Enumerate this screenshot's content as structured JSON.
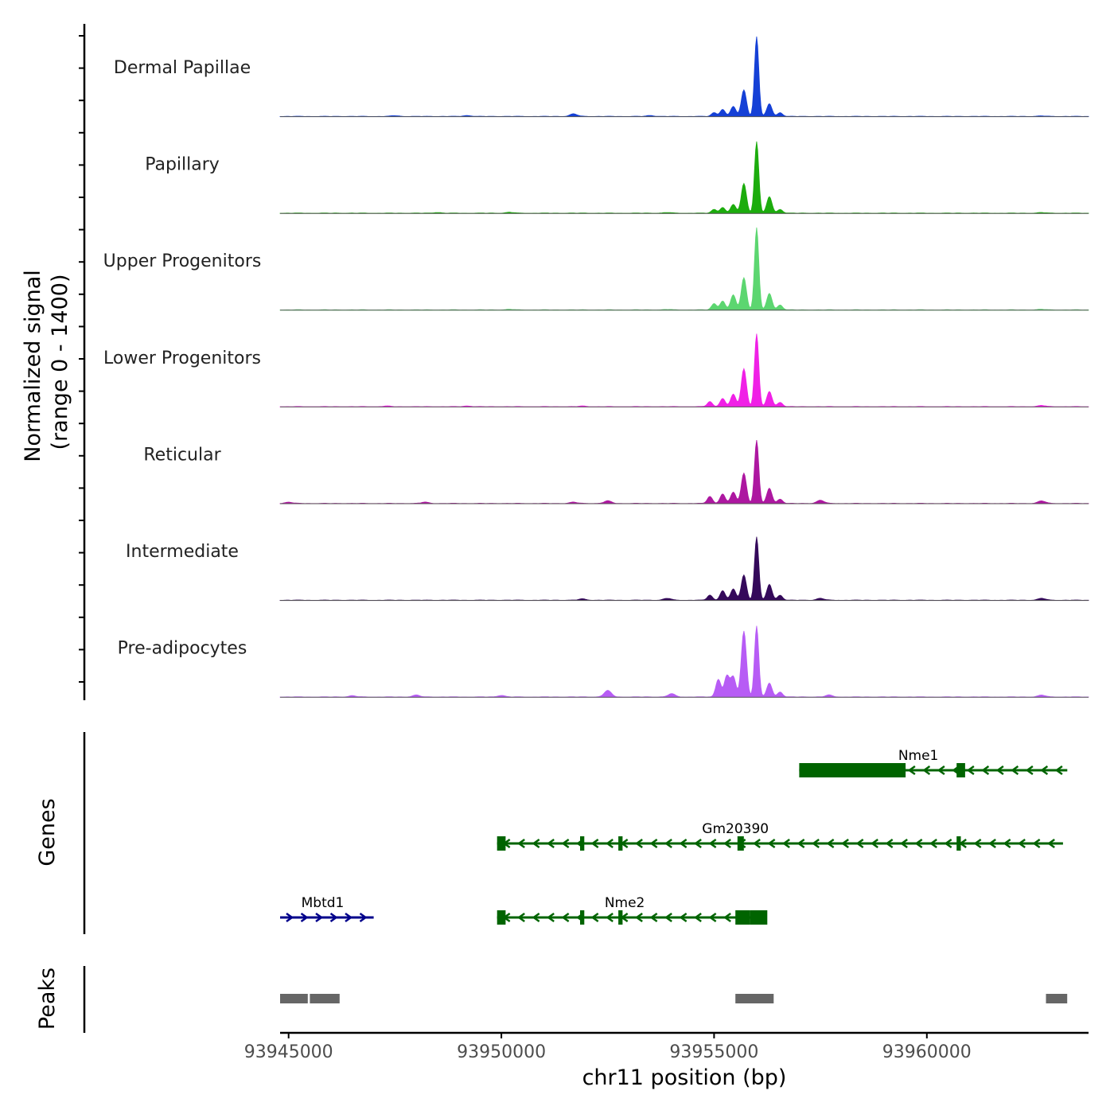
{
  "chart_data": {
    "type": "area",
    "title": "",
    "chromosome": "chr11",
    "xlabel": "chr11 position (bp)",
    "ylabel_line1": "Normalized signal",
    "ylabel_line2": "(range 0 - 1400)",
    "ylim": [
      0,
      1400
    ],
    "xlim": [
      93944800,
      93963800
    ],
    "x_ticks": [
      93945000,
      93950000,
      93955000,
      93960000
    ],
    "x_tick_labels": [
      "93945000",
      "93950000",
      "93955000",
      "93960000"
    ],
    "coverage_peaks": {
      "positions": [
        93954900,
        93955200,
        93955400,
        93955700,
        93956000,
        93956300,
        93956600
      ],
      "note": "signal concentrated around 93955000-93956700"
    },
    "tracks": [
      {
        "name": "Dermal Papillae",
        "color": "#1540d6",
        "peaks": [
          [
            93955000,
            60
          ],
          [
            93955200,
            110
          ],
          [
            93955450,
            160
          ],
          [
            93955700,
            420
          ],
          [
            93956000,
            1260
          ],
          [
            93956300,
            200
          ],
          [
            93956550,
            60
          ]
        ],
        "minor": [
          [
            93951700,
            40
          ],
          [
            93949200,
            15
          ],
          [
            93947500,
            12
          ],
          [
            93953500,
            14
          ],
          [
            93962700,
            8
          ]
        ]
      },
      {
        "name": "Papillary",
        "color": "#1cac0d",
        "peaks": [
          [
            93955000,
            60
          ],
          [
            93955200,
            90
          ],
          [
            93955450,
            140
          ],
          [
            93955700,
            470
          ],
          [
            93956000,
            1130
          ],
          [
            93956300,
            260
          ],
          [
            93956550,
            60
          ]
        ],
        "minor": [
          [
            93948500,
            12
          ],
          [
            93950200,
            14
          ],
          [
            93953900,
            10
          ],
          [
            93962700,
            10
          ]
        ]
      },
      {
        "name": "Upper Progenitors",
        "color": "#5cd670",
        "peaks": [
          [
            93955000,
            100
          ],
          [
            93955200,
            140
          ],
          [
            93955450,
            240
          ],
          [
            93955700,
            510
          ],
          [
            93956000,
            1300
          ],
          [
            93956300,
            260
          ],
          [
            93956550,
            80
          ]
        ],
        "minor": [
          [
            93950200,
            10
          ],
          [
            93953900,
            8
          ],
          [
            93962700,
            10
          ]
        ]
      },
      {
        "name": "Lower Progenitors",
        "color": "#f020e6",
        "peaks": [
          [
            93954900,
            80
          ],
          [
            93955200,
            130
          ],
          [
            93955450,
            200
          ],
          [
            93955700,
            600
          ],
          [
            93956000,
            1150
          ],
          [
            93956300,
            240
          ],
          [
            93956550,
            70
          ]
        ],
        "minor": [
          [
            93947300,
            10
          ],
          [
            93949200,
            12
          ],
          [
            93951900,
            10
          ],
          [
            93962700,
            20
          ]
        ]
      },
      {
        "name": "Reticular",
        "color": "#ad17a0",
        "peaks": [
          [
            93954900,
            110
          ],
          [
            93955200,
            150
          ],
          [
            93955450,
            180
          ],
          [
            93955700,
            480
          ],
          [
            93956000,
            1000
          ],
          [
            93956300,
            240
          ],
          [
            93956550,
            70
          ]
        ],
        "minor": [
          [
            93945000,
            20
          ],
          [
            93948200,
            20
          ],
          [
            93951700,
            20
          ],
          [
            93952500,
            40
          ],
          [
            93957500,
            50
          ],
          [
            93962700,
            40
          ]
        ]
      },
      {
        "name": "Intermediate",
        "color": "#34095a",
        "peaks": [
          [
            93954900,
            80
          ],
          [
            93955200,
            150
          ],
          [
            93955450,
            180
          ],
          [
            93955700,
            400
          ],
          [
            93956000,
            1000
          ],
          [
            93956300,
            250
          ],
          [
            93956550,
            80
          ]
        ],
        "minor": [
          [
            93951900,
            20
          ],
          [
            93953900,
            30
          ],
          [
            93957500,
            30
          ],
          [
            93962700,
            30
          ]
        ]
      },
      {
        "name": "Pre-adipocytes",
        "color": "#b75cf5",
        "peaks": [
          [
            93955100,
            280
          ],
          [
            93955300,
            330
          ],
          [
            93955450,
            320
          ],
          [
            93955700,
            1040
          ],
          [
            93956000,
            1120
          ],
          [
            93956300,
            220
          ],
          [
            93956550,
            80
          ]
        ],
        "minor": [
          [
            93946500,
            20
          ],
          [
            93948000,
            30
          ],
          [
            93950000,
            25
          ],
          [
            93952500,
            100
          ],
          [
            93954000,
            50
          ],
          [
            93957700,
            30
          ],
          [
            93962700,
            30
          ]
        ]
      }
    ],
    "genes_label": "Genes",
    "genes": [
      {
        "name": "Nme1",
        "strand": "-",
        "color": "#006400",
        "start": 93957000,
        "end": 93963300,
        "exons": [
          [
            93957000,
            93959500
          ],
          [
            93960700,
            93960900
          ]
        ]
      },
      {
        "name": "Gm20390",
        "strand": "-",
        "color": "#006400",
        "start": 93949900,
        "end": 93963200,
        "exons": [
          [
            93949900,
            93950100
          ],
          [
            93951850,
            93951950
          ],
          [
            93952750,
            93952850
          ],
          [
            93955550,
            93955700
          ],
          [
            93960700,
            93960800
          ]
        ]
      },
      {
        "name": "Mbtd1",
        "strand": "+",
        "color": "#00008b",
        "start": 93944800,
        "end": 93947000,
        "exons": []
      },
      {
        "name": "Nme2",
        "strand": "-",
        "color": "#006400",
        "start": 93949900,
        "end": 93956200,
        "exons": [
          [
            93949900,
            93950100
          ],
          [
            93951850,
            93951950
          ],
          [
            93952750,
            93952850
          ],
          [
            93955500,
            93955850
          ],
          [
            93955850,
            93956250
          ]
        ]
      }
    ],
    "peaks_label": "Peaks",
    "peak_regions": [
      [
        93944800,
        93945450
      ],
      [
        93945500,
        93946200
      ],
      [
        93955500,
        93956400
      ],
      [
        93962800,
        93963300
      ]
    ]
  }
}
